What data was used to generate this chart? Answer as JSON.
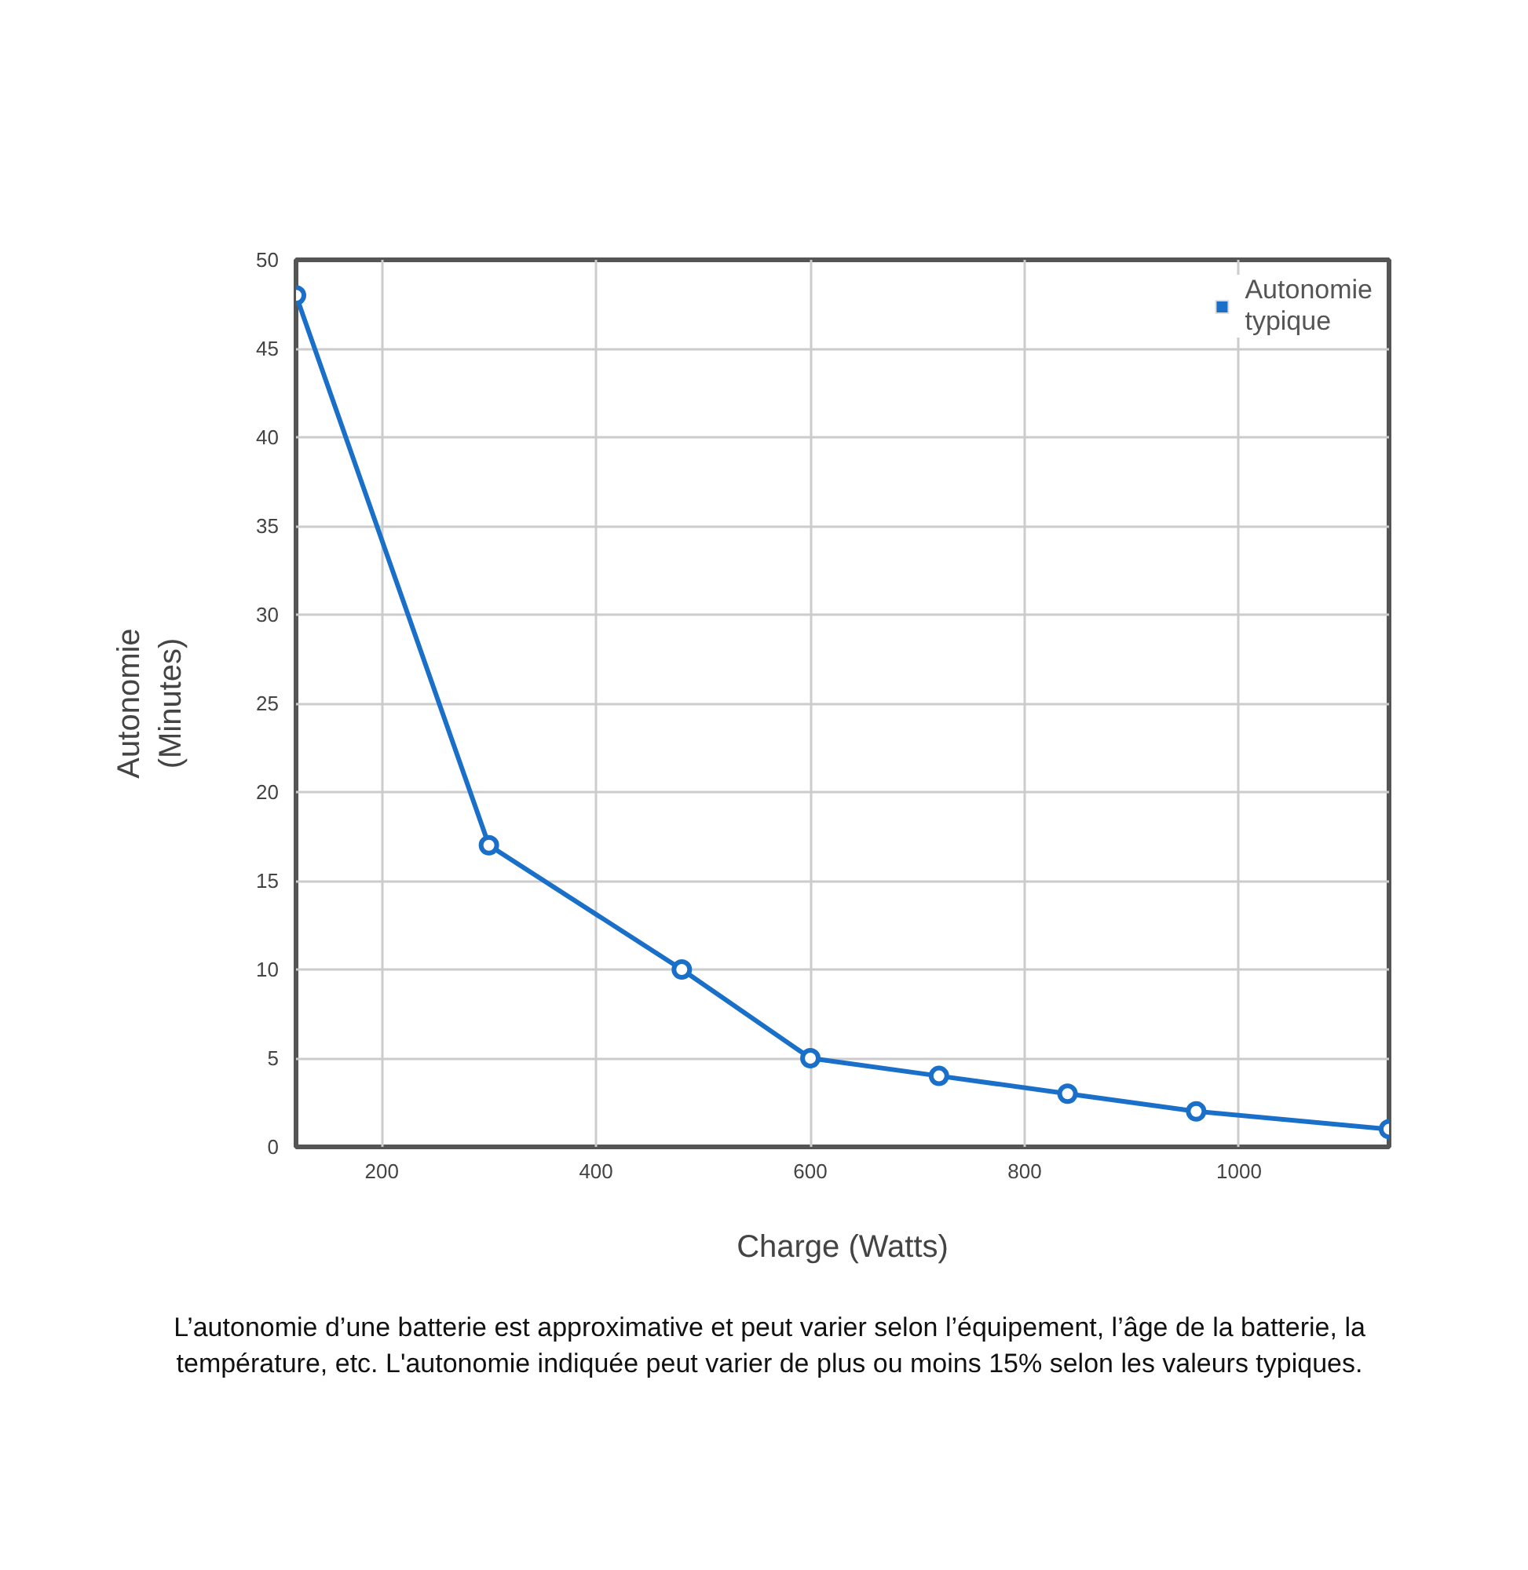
{
  "chart_data": {
    "type": "line",
    "xlabel": "Charge (Watts)",
    "ylabel": "Autonomie (Minutes)",
    "x": [
      120,
      300,
      480,
      600,
      720,
      840,
      960,
      1140
    ],
    "series": [
      {
        "name": "Autonomie typique",
        "color": "#1a6fc9",
        "values": [
          48,
          17,
          10,
          5,
          4,
          3,
          2,
          1
        ]
      }
    ],
    "xlim": [
      120,
      1140
    ],
    "xticks": [
      200,
      400,
      600,
      800,
      1000
    ],
    "ylim": [
      0,
      50
    ],
    "yticks": [
      0,
      5,
      10,
      15,
      20,
      25,
      30,
      35,
      40,
      45,
      50
    ],
    "grid": true,
    "legend": "top right",
    "marker": "circle",
    "line_style": "solid",
    "annotations": [
      "L’autonomie d’une batterie est approximative et peut varier selon l’équipement, l’âge de la batterie, la température, etc. L'autonomie indiquée peut varier de plus ou moins 15% selon les valeurs typiques."
    ]
  }
}
